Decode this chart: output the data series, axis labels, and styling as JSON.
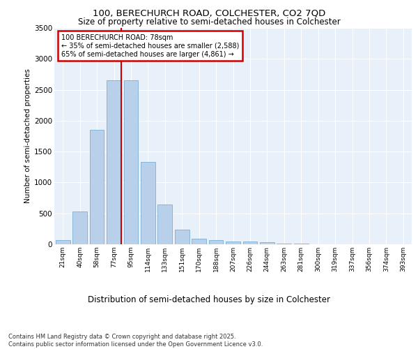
{
  "title1": "100, BERECHURCH ROAD, COLCHESTER, CO2 7QD",
  "title2": "Size of property relative to semi-detached houses in Colchester",
  "xlabel": "Distribution of semi-detached houses by size in Colchester",
  "ylabel": "Number of semi-detached properties",
  "categories": [
    "21sqm",
    "40sqm",
    "58sqm",
    "77sqm",
    "95sqm",
    "114sqm",
    "133sqm",
    "151sqm",
    "170sqm",
    "188sqm",
    "207sqm",
    "226sqm",
    "244sqm",
    "263sqm",
    "281sqm",
    "300sqm",
    "319sqm",
    "337sqm",
    "356sqm",
    "374sqm",
    "393sqm"
  ],
  "values": [
    65,
    530,
    1855,
    2650,
    2650,
    1330,
    640,
    240,
    95,
    65,
    50,
    40,
    30,
    15,
    10,
    5,
    3,
    2,
    1,
    1,
    0
  ],
  "bar_color": "#b8d0ea",
  "bar_edge_color": "#7aafd4",
  "background_color": "#e8f0fa",
  "grid_color": "#ffffff",
  "vline_color": "#cc0000",
  "vline_pos": 3.43,
  "annotation_title": "100 BERECHURCH ROAD: 78sqm",
  "annotation_line1": "← 35% of semi-detached houses are smaller (2,588)",
  "annotation_line2": "65% of semi-detached houses are larger (4,861) →",
  "annotation_box_color": "#cc0000",
  "footer1": "Contains HM Land Registry data © Crown copyright and database right 2025.",
  "footer2": "Contains public sector information licensed under the Open Government Licence v3.0.",
  "ylim": [
    0,
    3500
  ],
  "yticks": [
    0,
    500,
    1000,
    1500,
    2000,
    2500,
    3000,
    3500
  ]
}
